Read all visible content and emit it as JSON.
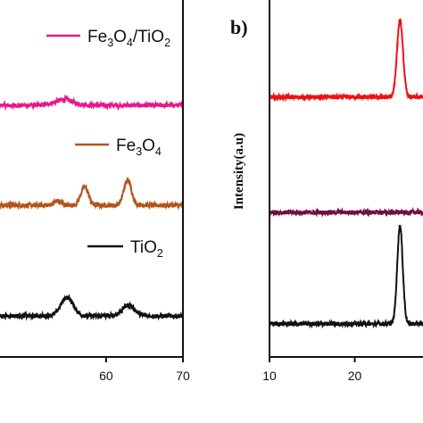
{
  "chart_data": [
    {
      "type": "line",
      "panel": "a",
      "title": "",
      "xlabel": "",
      "ylabel": "",
      "xlim": [
        42,
        70
      ],
      "x_ticks": [
        60,
        70
      ],
      "y_ticks_shown": false,
      "legend_placement": "inline, right of each curve",
      "series": [
        {
          "name": "Fe3O4/TiO2",
          "label_parts": [
            "Fe",
            "3",
            "O",
            "4",
            "/TiO",
            "2"
          ],
          "color": "#e6198a",
          "baseline_frac": 0.705,
          "noise": 0.006,
          "peaks": [
            {
              "x": 54.5,
              "h": 0.016,
              "w": 1.2
            }
          ]
        },
        {
          "name": "Fe3O4",
          "label_parts": [
            "Fe",
            "3",
            "O",
            "4"
          ],
          "color": "#b4541a",
          "baseline_frac": 0.425,
          "noise": 0.006,
          "peaks": [
            {
              "x": 53.7,
              "h": 0.012,
              "w": 0.5
            },
            {
              "x": 57.2,
              "h": 0.052,
              "w": 0.5
            },
            {
              "x": 62.8,
              "h": 0.07,
              "w": 0.5
            }
          ]
        },
        {
          "name": "TiO2",
          "label_parts": [
            "TiO",
            "2"
          ],
          "color": "#111111",
          "baseline_frac": 0.115,
          "noise": 0.006,
          "peaks": [
            {
              "x": 54.9,
              "h": 0.052,
              "w": 0.8
            },
            {
              "x": 62.9,
              "h": 0.03,
              "w": 0.8
            }
          ]
        }
      ]
    },
    {
      "type": "line",
      "panel": "b",
      "title": "b)",
      "xlabel": "",
      "ylabel": "Intensity(a.u)",
      "xlim": [
        10,
        28
      ],
      "x_ticks": [
        10,
        20
      ],
      "y_ticks_shown": false,
      "series": [
        {
          "color": "#ee1111",
          "baseline_frac": 0.728,
          "noise": 0.006,
          "peaks": [
            {
              "x": 25.3,
              "h": 0.215,
              "w": 0.35
            }
          ]
        },
        {
          "color": "#6e1040",
          "baseline_frac": 0.405,
          "noise": 0.006,
          "peaks": []
        },
        {
          "color": "#111111",
          "baseline_frac": 0.093,
          "noise": 0.006,
          "peaks": [
            {
              "x": 25.3,
              "h": 0.275,
              "w": 0.32
            }
          ]
        }
      ]
    }
  ]
}
